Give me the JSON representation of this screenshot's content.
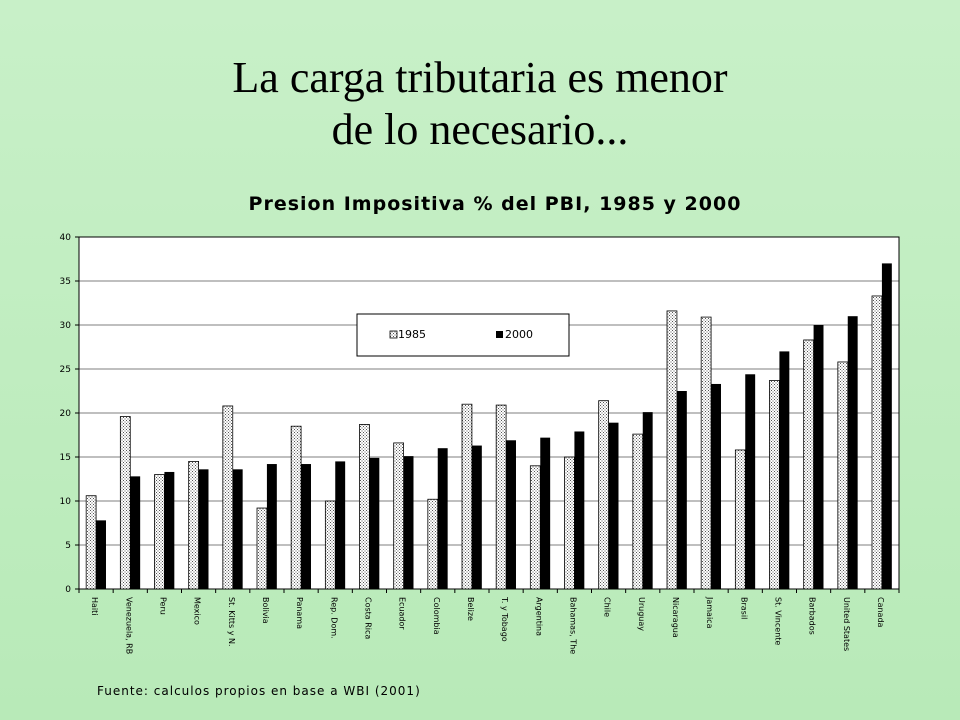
{
  "slide": {
    "title_line1": "La carga tributaria es menor",
    "title_line2": "de lo necesario..."
  },
  "source_note": "Fuente: calculos propios en base a WBI (2001)",
  "colors": {
    "background": "#c0eec0",
    "series_2000": "#000000",
    "series_1985_pattern": "dotted"
  },
  "chart_data": {
    "type": "bar",
    "title": "Presion Impositiva % del PBI, 1985 y 2000",
    "xlabel": "",
    "ylabel": "",
    "ylim": [
      0,
      40
    ],
    "yticks": [
      0,
      5,
      10,
      15,
      20,
      25,
      30,
      35,
      40
    ],
    "grid": true,
    "legend_position": "top-center",
    "categories": [
      "Haiti",
      "Venezuela, RB",
      "Peru",
      "Mexico",
      "St. Kitts y N.",
      "Bolivia",
      "Panama",
      "Rep. Dom.",
      "Costa Rica",
      "Ecuador",
      "Colombia",
      "Belize",
      "T. y Tobago",
      "Argentina",
      "Bahamas, The",
      "Chile",
      "Uruguay",
      "Nicaragua",
      "Jamaica",
      "Brasil",
      "St. Vincente",
      "Barbados",
      "United States",
      "Canada"
    ],
    "series": [
      {
        "name": "1985",
        "values": [
          10.6,
          19.6,
          13.0,
          14.5,
          20.8,
          9.2,
          18.5,
          10.0,
          18.7,
          16.6,
          10.2,
          21.0,
          20.9,
          14.0,
          15.0,
          21.4,
          17.6,
          31.6,
          30.9,
          15.8,
          23.7,
          28.3,
          25.8,
          33.3
        ]
      },
      {
        "name": "2000",
        "values": [
          7.8,
          12.8,
          13.3,
          13.6,
          13.6,
          14.2,
          14.2,
          14.5,
          14.9,
          15.1,
          16.0,
          16.3,
          16.9,
          17.2,
          17.9,
          18.9,
          20.1,
          22.5,
          23.3,
          24.4,
          27.0,
          30.0,
          31.0,
          37.0
        ]
      }
    ]
  }
}
